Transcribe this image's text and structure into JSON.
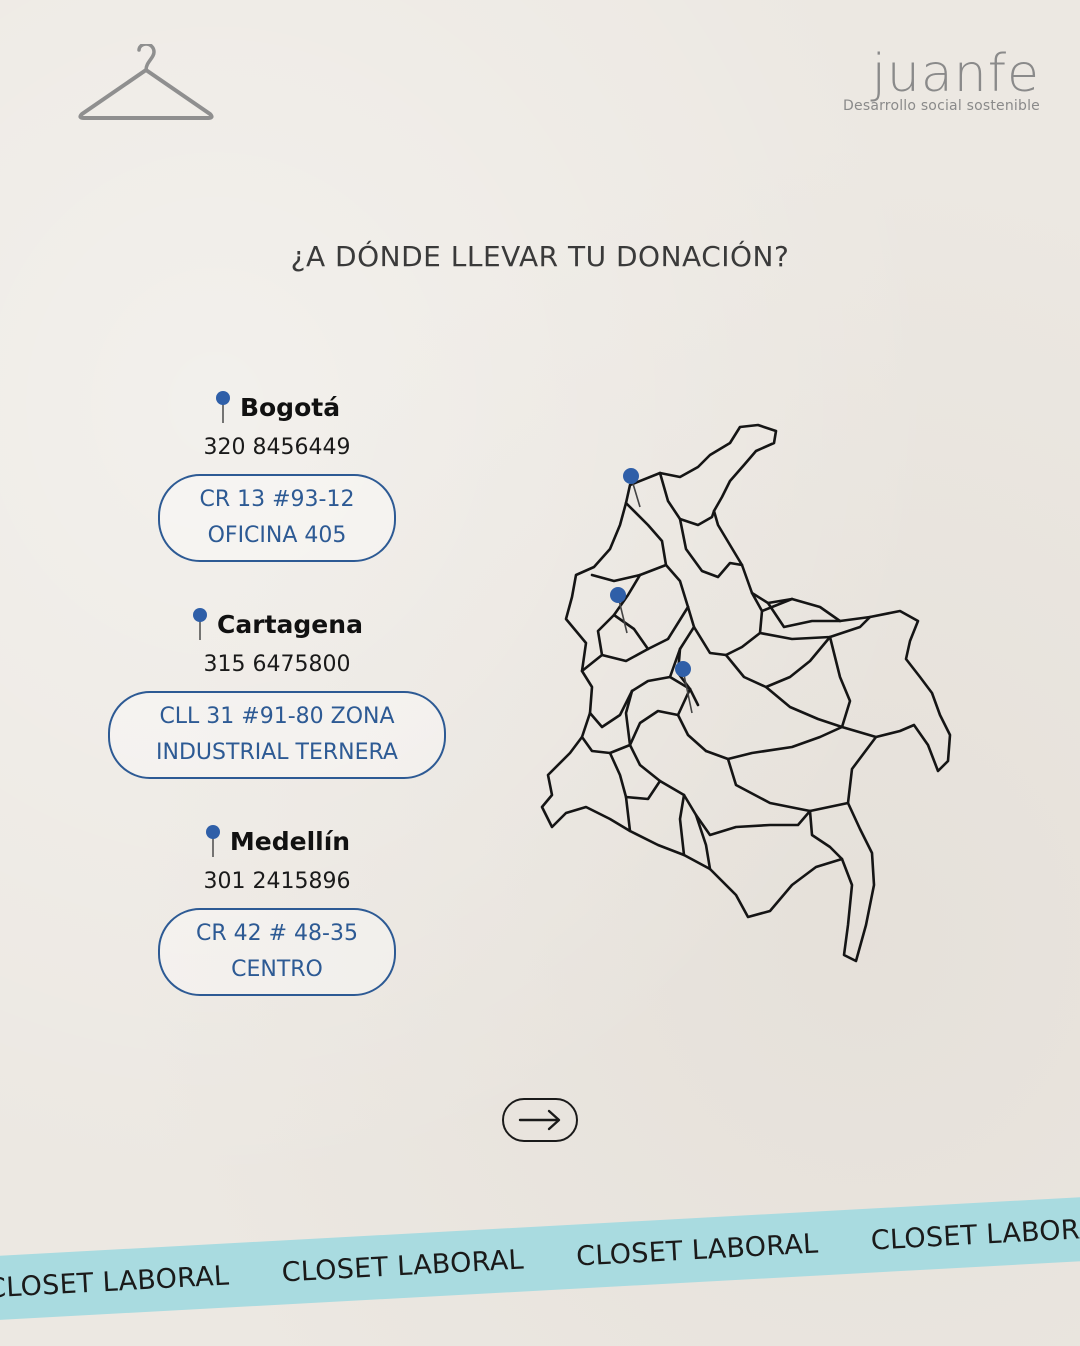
{
  "brand": {
    "logo": "juanfe",
    "tagline": "Desarrollo social sostenible"
  },
  "headline": "¿A DÓNDE LLEVAR TU DONACIÓN?",
  "locations": [
    {
      "city": "Bogotá",
      "phone": "320 8456449",
      "address_line1": "CR 13 #93-12",
      "address_line2": "OFICINA 405"
    },
    {
      "city": "Cartagena",
      "phone": "315 6475800",
      "address_line1": "CLL 31 #91-80 ZONA",
      "address_line2": "INDUSTRIAL TERNERA"
    },
    {
      "city": "Medellín",
      "phone": "301 2415896",
      "address_line1": "CR 42 # 48-35",
      "address_line2": "CENTRO"
    }
  ],
  "ribbon": {
    "items": [
      "CLOSET LABORAL",
      "CLOSET LABORAL",
      "CLOSET LABORAL",
      "CLOSET LABORAL"
    ]
  },
  "colors": {
    "accent": "#2d5a94",
    "ribbon": "#a9dbe0",
    "background": "#ece8e2",
    "pin": "#2f5fa8"
  },
  "icons": {
    "hanger": "hanger-icon",
    "pin": "map-pin-icon",
    "arrow": "arrow-right-icon"
  }
}
